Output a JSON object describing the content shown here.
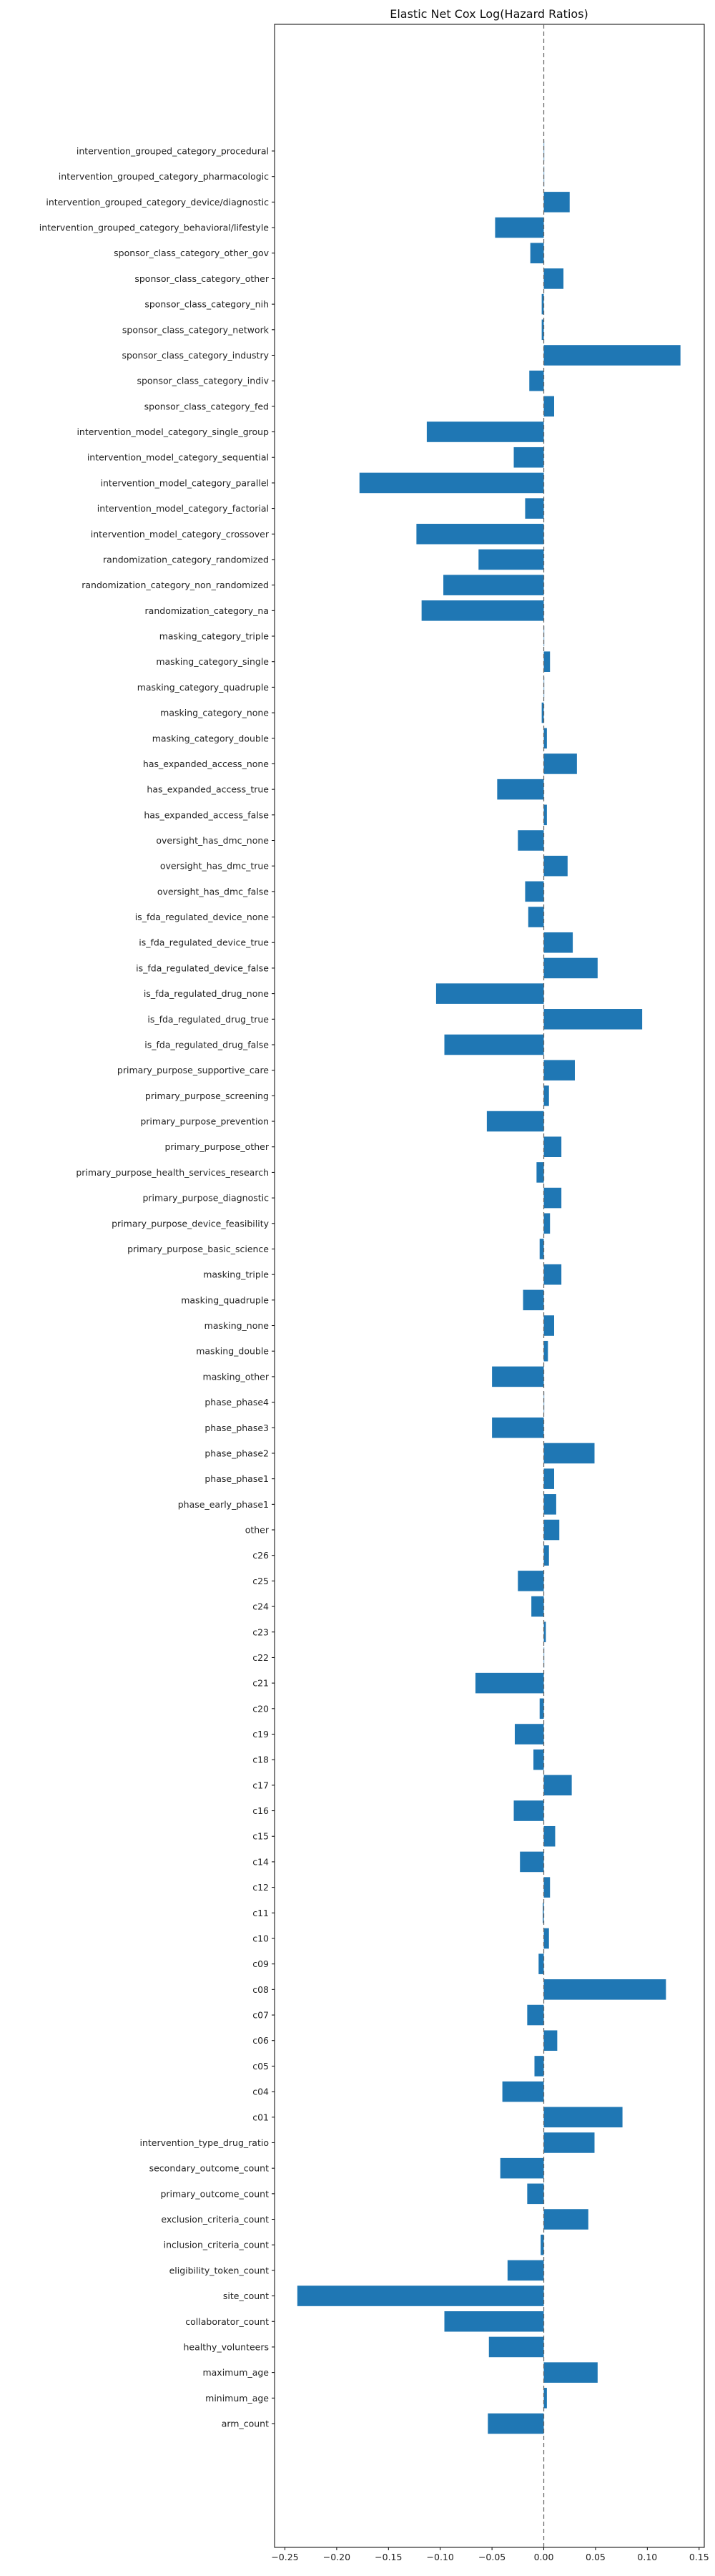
{
  "chart_data": {
    "type": "bar",
    "orientation": "horizontal",
    "title": "Elastic Net Cox Log(Hazard Ratios)",
    "xlabel": "",
    "ylabel": "",
    "xlim": [
      -0.26,
      0.155
    ],
    "xticks": [
      -0.25,
      -0.2,
      -0.15,
      -0.1,
      -0.05,
      0.0,
      0.05,
      0.1,
      0.15
    ],
    "xtick_labels": [
      "−0.25",
      "−0.20",
      "−0.15",
      "−0.10",
      "−0.05",
      "0.00",
      "0.05",
      "0.10",
      "0.15"
    ],
    "reference_line": 0,
    "grid": false,
    "bar_color": "#1f77b4",
    "reference_line_color": "#666666",
    "categories": [
      "intervention_grouped_category_procedural",
      "intervention_grouped_category_pharmacologic",
      "intervention_grouped_category_device/diagnostic",
      "intervention_grouped_category_behavioral/lifestyle",
      "sponsor_class_category_other_gov",
      "sponsor_class_category_other",
      "sponsor_class_category_nih",
      "sponsor_class_category_network",
      "sponsor_class_category_industry",
      "sponsor_class_category_indiv",
      "sponsor_class_category_fed",
      "intervention_model_category_single_group",
      "intervention_model_category_sequential",
      "intervention_model_category_parallel",
      "intervention_model_category_factorial",
      "intervention_model_category_crossover",
      "randomization_category_randomized",
      "randomization_category_non_randomized",
      "randomization_category_na",
      "masking_category_triple",
      "masking_category_single",
      "masking_category_quadruple",
      "masking_category_none",
      "masking_category_double",
      "has_expanded_access_none",
      "has_expanded_access_true",
      "has_expanded_access_false",
      "oversight_has_dmc_none",
      "oversight_has_dmc_true",
      "oversight_has_dmc_false",
      "is_fda_regulated_device_none",
      "is_fda_regulated_device_true",
      "is_fda_regulated_device_false",
      "is_fda_regulated_drug_none",
      "is_fda_regulated_drug_true",
      "is_fda_regulated_drug_false",
      "primary_purpose_supportive_care",
      "primary_purpose_screening",
      "primary_purpose_prevention",
      "primary_purpose_other",
      "primary_purpose_health_services_research",
      "primary_purpose_diagnostic",
      "primary_purpose_device_feasibility",
      "primary_purpose_basic_science",
      "masking_triple",
      "masking_quadruple",
      "masking_none",
      "masking_double",
      "masking_other",
      "phase_phase4",
      "phase_phase3",
      "phase_phase2",
      "phase_phase1",
      "phase_early_phase1",
      "other",
      "c26",
      "c25",
      "c24",
      "c23",
      "c22",
      "c21",
      "c20",
      "c19",
      "c18",
      "c17",
      "c16",
      "c15",
      "c14",
      "c12",
      "c11",
      "c10",
      "c09",
      "c08",
      "c07",
      "c06",
      "c05",
      "c04",
      "c01",
      "intervention_type_drug_ratio",
      "secondary_outcome_count",
      "primary_outcome_count",
      "exclusion_criteria_count",
      "inclusion_criteria_count",
      "eligibility_token_count",
      "site_count",
      "collaborator_count",
      "healthy_volunteers",
      "maximum_age",
      "minimum_age",
      "arm_count"
    ],
    "values": [
      0.0,
      0.0,
      0.025,
      -0.047,
      -0.013,
      0.019,
      -0.002,
      -0.002,
      0.132,
      -0.014,
      0.01,
      -0.113,
      -0.029,
      -0.178,
      -0.018,
      -0.123,
      -0.063,
      -0.097,
      -0.118,
      0.0,
      0.006,
      0.0,
      -0.002,
      0.003,
      0.032,
      -0.045,
      0.003,
      -0.025,
      0.023,
      -0.018,
      -0.015,
      0.028,
      0.052,
      -0.104,
      0.095,
      -0.096,
      0.03,
      0.005,
      -0.055,
      0.017,
      -0.007,
      0.017,
      0.006,
      -0.004,
      0.017,
      -0.02,
      0.01,
      0.004,
      -0.05,
      0.0,
      -0.05,
      0.049,
      0.01,
      0.012,
      0.015,
      0.005,
      -0.025,
      -0.012,
      0.002,
      0.0,
      -0.066,
      -0.004,
      -0.028,
      -0.01,
      0.027,
      -0.029,
      0.011,
      -0.023,
      0.006,
      -0.001,
      0.005,
      -0.005,
      0.118,
      -0.016,
      0.013,
      -0.009,
      -0.04,
      0.076,
      0.049,
      -0.042,
      -0.016,
      0.043,
      -0.003,
      -0.035,
      -0.238,
      -0.096,
      -0.053,
      0.052,
      0.003,
      -0.054
    ]
  }
}
